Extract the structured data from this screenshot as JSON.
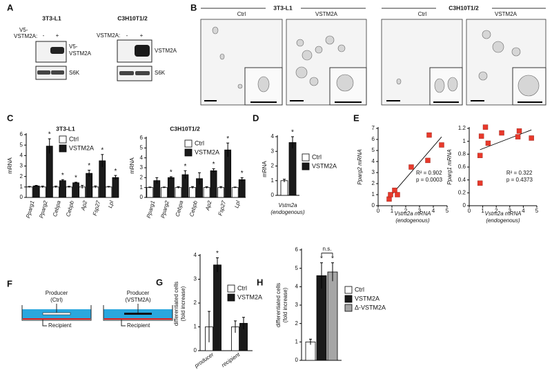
{
  "panel_labels": [
    "A",
    "B",
    "C",
    "D",
    "E",
    "F",
    "G",
    "H"
  ],
  "blots": [
    {
      "title": "3T3-L1",
      "lane_header": [
        "V5-",
        "VSTM2A:"
      ],
      "lanes": [
        "-",
        "+"
      ],
      "rows": [
        [
          "V5-",
          "VSTM2A"
        ],
        [
          "S6K"
        ]
      ]
    },
    {
      "title": "C3H10T1/2",
      "lane_header": [
        "VSTM2A:"
      ],
      "lanes": [
        "-",
        "+"
      ],
      "rows": [
        [
          "VSTM2A"
        ],
        [
          "S6K"
        ]
      ]
    }
  ],
  "micrographs": [
    {
      "title": "3T3-L1",
      "conditions": [
        "Ctrl",
        "VSTM2A"
      ]
    },
    {
      "title": "C3H10T1/2",
      "conditions": [
        "Ctrl",
        "VSTM2A"
      ]
    }
  ],
  "diagram": {
    "producers": [
      [
        "Producer",
        "(Ctrl)"
      ],
      [
        "Producer",
        "(VSTM2A)"
      ]
    ],
    "recipient": "Recipient"
  },
  "chart_data": [
    {
      "type": "bar",
      "title": "3T3-L1",
      "y_label": [
        "mRNA"
      ],
      "categories": [
        "Pparg1",
        "Pparg2",
        "Cebpa",
        "Cebpb",
        "Ap2",
        "Fsp27",
        "Lpl"
      ],
      "ylim": [
        0,
        6
      ],
      "yticks": [
        0,
        1,
        2,
        3,
        4,
        5,
        6
      ],
      "series": [
        {
          "name": "Ctrl",
          "color": "#ffffff",
          "values": [
            1,
            1,
            1,
            1,
            1,
            1,
            1
          ],
          "errors": [
            0.05,
            0.08,
            0.08,
            0.06,
            0.15,
            0.1,
            0.05
          ]
        },
        {
          "name": "VSTM2A",
          "color": "#1a1a1a",
          "values": [
            1.1,
            4.9,
            1.6,
            1.4,
            2.3,
            3.5,
            1.9
          ],
          "errors": [
            0.05,
            0.7,
            0.1,
            0.05,
            0.3,
            0.6,
            0.2
          ],
          "significance": [
            null,
            "*",
            "*",
            "*",
            "*",
            "*",
            "*"
          ]
        }
      ]
    },
    {
      "type": "bar",
      "title": "C3H10T1/2",
      "y_label": [
        "mRNA"
      ],
      "categories": [
        "Pparg1",
        "Pparg2",
        "Cebpa",
        "Cebpb",
        "Ap2",
        "Fsp27",
        "Lpl"
      ],
      "ylim": [
        0,
        6
      ],
      "yticks": [
        0,
        1,
        2,
        3,
        4,
        5,
        6
      ],
      "series": [
        {
          "name": "Ctrl",
          "color": "#ffffff",
          "values": [
            1,
            1,
            1,
            1,
            1,
            1,
            1
          ],
          "errors": [
            0.05,
            0.05,
            0.08,
            0.1,
            0.08,
            0.1,
            0.05
          ]
        },
        {
          "name": "VSTM2A",
          "color": "#1a1a1a",
          "values": [
            1.7,
            2.0,
            2.3,
            1.9,
            2.7,
            4.8,
            1.8
          ],
          "errors": [
            0.3,
            0.1,
            0.4,
            0.6,
            0.2,
            0.7,
            0.2
          ],
          "significance": [
            null,
            "*",
            "*",
            null,
            "*",
            "*",
            "*"
          ]
        }
      ]
    },
    {
      "type": "bar",
      "y_label": [
        "mRNA"
      ],
      "x_label": [
        "Vstm2a",
        "(endogenous)"
      ],
      "categories": [
        null
      ],
      "ylim": [
        0,
        4
      ],
      "yticks": [
        0,
        1,
        2,
        3,
        4
      ],
      "series": [
        {
          "name": "Ctrl",
          "color": "#ffffff",
          "values": [
            1
          ],
          "errors": [
            0.1
          ]
        },
        {
          "name": "VSTM2A",
          "color": "#1a1a1a",
          "values": [
            3.6
          ],
          "errors": [
            0.4
          ],
          "significance": [
            "*"
          ]
        }
      ]
    },
    {
      "type": "scatter",
      "y_label": [
        "Pparg2 mRNA"
      ],
      "x_label": [
        "Vstm2a mRNA",
        "(endogenous)"
      ],
      "x": [
        0.8,
        0.9,
        1.2,
        1.4,
        2.4,
        3.6,
        3.7,
        4.6
      ],
      "values": [
        0.6,
        1.0,
        1.4,
        1.0,
        3.5,
        4.1,
        6.4,
        5.5
      ],
      "color": "#e8392b",
      "xlim": [
        0,
        5
      ],
      "xticks": [
        0,
        1,
        2,
        3,
        4,
        5
      ],
      "ylim": [
        0,
        7
      ],
      "yticks": [
        0,
        1,
        2,
        3,
        4,
        5,
        6,
        7
      ],
      "trendline": true,
      "annotations": [
        "R² = 0.902",
        "p = 0.0003"
      ]
    },
    {
      "type": "scatter",
      "y_label": [
        "Pparg1 mRNA"
      ],
      "x_label": [
        "Vstm2a mRNA",
        "(endogenous)"
      ],
      "x": [
        0.8,
        0.8,
        0.9,
        1.2,
        1.4,
        2.4,
        3.6,
        3.7,
        4.6
      ],
      "values": [
        0.35,
        0.78,
        1.08,
        1.22,
        0.97,
        1.13,
        1.07,
        1.16,
        1.05
      ],
      "color": "#e8392b",
      "xlim": [
        0,
        5
      ],
      "xticks": [
        0,
        1,
        2,
        3,
        4,
        5
      ],
      "ylim": [
        0,
        1.2
      ],
      "yticks": [
        0,
        0.2,
        0.4,
        0.6,
        0.8,
        1,
        1.2
      ],
      "trendline": true,
      "annotations": [
        "R² = 0.322",
        "p = 0.4373"
      ]
    },
    {
      "type": "bar",
      "y_label": [
        "differentiated cells",
        "(fold increase)"
      ],
      "categories": [
        "producer",
        "recipient"
      ],
      "ylim": [
        0,
        4
      ],
      "yticks": [
        0,
        1,
        2,
        3,
        4
      ],
      "series": [
        {
          "name": "Ctrl",
          "color": "#ffffff",
          "values": [
            1,
            1
          ],
          "errors": [
            0.65,
            0.25
          ]
        },
        {
          "name": "VSTM2A",
          "color": "#1a1a1a",
          "values": [
            3.6,
            1.15
          ],
          "errors": [
            0.3,
            0.25
          ],
          "significance": [
            "*",
            null
          ]
        }
      ]
    },
    {
      "type": "bar",
      "y_label": [
        "differentiated cells",
        "(fold increase)"
      ],
      "categories": [
        null
      ],
      "ylim": [
        0,
        6
      ],
      "yticks": [
        0,
        1,
        2,
        3,
        4,
        5,
        6
      ],
      "bracket_label": "n.s.",
      "series": [
        {
          "name": "Ctrl",
          "color": "#ffffff",
          "values": [
            1
          ],
          "errors": [
            0.15
          ]
        },
        {
          "name": "VSTM2A",
          "color": "#1a1a1a",
          "values": [
            4.6
          ],
          "errors": [
            0.7
          ],
          "significance": [
            "*"
          ]
        },
        {
          "name": "Δ-VSTM2A",
          "color": "#a6a6a6",
          "values": [
            4.8
          ],
          "errors": [
            0.5
          ],
          "significance": [
            "*"
          ]
        }
      ]
    }
  ]
}
